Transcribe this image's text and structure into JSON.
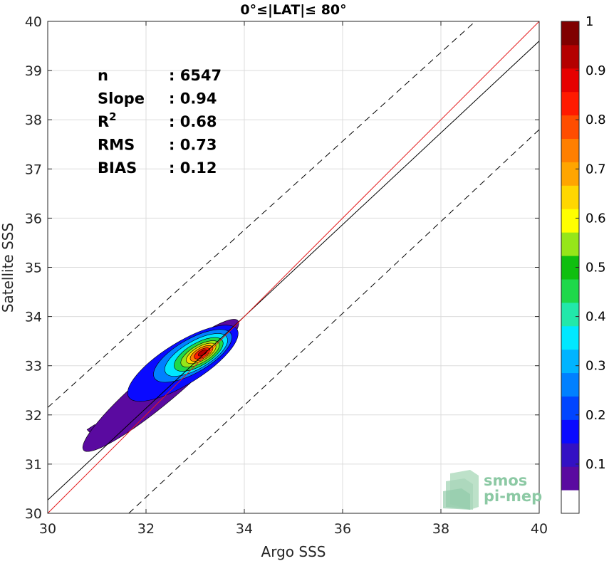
{
  "chart_data": {
    "type": "contour-density",
    "title": "0°≤|LAT|≤ 80°",
    "xlabel": "Argo SSS",
    "ylabel": "Satellite SSS",
    "xlim": [
      30,
      40
    ],
    "ylim": [
      30,
      40
    ],
    "xticks": [
      "30",
      "32",
      "34",
      "36",
      "38",
      "40"
    ],
    "yticks": [
      "30",
      "31",
      "32",
      "33",
      "34",
      "35",
      "36",
      "37",
      "38",
      "39",
      "40"
    ],
    "grid": true,
    "stats": [
      {
        "label": "n",
        "value": ": 6547"
      },
      {
        "label": "Slope",
        "value": ": 0.94"
      },
      {
        "label": "R",
        "sup": "2",
        "value": ": 0.68"
      },
      {
        "label": "RMS",
        "value": ": 0.73"
      },
      {
        "label": "BIAS",
        "value": ": 0.12"
      }
    ],
    "lines": {
      "one_to_one": {
        "x": [
          30,
          40
        ],
        "y": [
          30,
          40
        ],
        "color": "#e41a1c"
      },
      "regression": {
        "x": [
          30,
          40
        ],
        "y": [
          30.27,
          39.6
        ],
        "color": "#000000"
      },
      "upper_bound": {
        "x": [
          30,
          38.7
        ],
        "y": [
          32.15,
          40
        ],
        "style": "dashed"
      },
      "lower_bound": {
        "x": [
          31.65,
          40
        ],
        "y": [
          30,
          37.8
        ],
        "style": "dashed"
      }
    },
    "colorbar": {
      "range": [
        0,
        1
      ],
      "ticks": [
        "0.1",
        "0.2",
        "0.3",
        "0.4",
        "0.5",
        "0.6",
        "0.7",
        "0.8",
        "0.9",
        "1"
      ],
      "colors": [
        "#ffffff",
        "#5a0aa0",
        "#3311c4",
        "#0a0aff",
        "#0045ff",
        "#0080ff",
        "#00b4ff",
        "#00e8ff",
        "#22e8aa",
        "#1ed84a",
        "#0fbf0f",
        "#96e619",
        "#ffff00",
        "#ffd700",
        "#ffa500",
        "#ff7f00",
        "#ff4d00",
        "#ff1a00",
        "#e60000",
        "#b40000",
        "#800000"
      ]
    },
    "contours": [
      {
        "level": 0.05,
        "center": [
          32.3,
          32.6
        ],
        "rx": 2.05,
        "ry": 0.36,
        "angle": 40
      },
      {
        "level": 0.15,
        "center": [
          32.75,
          33.05
        ],
        "rx": 1.3,
        "ry": 0.42,
        "angle": 32
      },
      {
        "level": 0.25,
        "center": [
          32.95,
          33.2
        ],
        "rx": 0.9,
        "ry": 0.34,
        "angle": 30
      },
      {
        "level": 0.35,
        "center": [
          33.02,
          33.22
        ],
        "rx": 0.72,
        "ry": 0.28,
        "angle": 30
      },
      {
        "level": 0.45,
        "center": [
          33.07,
          33.23
        ],
        "rx": 0.56,
        "ry": 0.23,
        "angle": 30
      },
      {
        "level": 0.55,
        "center": [
          33.1,
          33.24
        ],
        "rx": 0.44,
        "ry": 0.18,
        "angle": 30
      },
      {
        "level": 0.65,
        "center": [
          33.12,
          33.25
        ],
        "rx": 0.34,
        "ry": 0.14,
        "angle": 30
      },
      {
        "level": 0.75,
        "center": [
          33.13,
          33.25
        ],
        "rx": 0.26,
        "ry": 0.11,
        "angle": 30
      },
      {
        "level": 0.85,
        "center": [
          33.14,
          33.25
        ],
        "rx": 0.18,
        "ry": 0.08,
        "angle": 30
      },
      {
        "level": 0.95,
        "center": [
          33.15,
          33.26
        ],
        "rx": 0.1,
        "ry": 0.045,
        "angle": 30
      }
    ],
    "contour_tail": {
      "points": [
        [
          30.8,
          31.7
        ],
        [
          30.95,
          31.8
        ],
        [
          31.5,
          31.85
        ],
        [
          31.9,
          32.0
        ],
        [
          31.7,
          31.85
        ],
        [
          31.3,
          31.6
        ],
        [
          30.95,
          31.55
        ]
      ]
    }
  },
  "logo": {
    "line1": "smos",
    "line2": "pi-mep"
  }
}
